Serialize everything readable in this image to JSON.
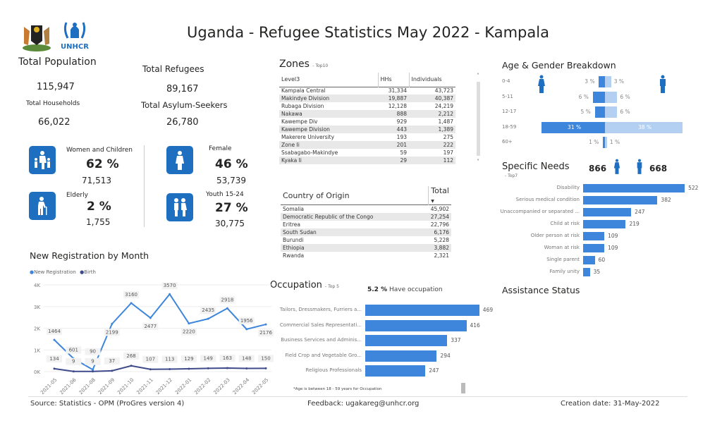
{
  "header": {
    "title": "Uganda - Refugee Statistics May 2022 - Kampala",
    "logos": [
      "Uganda coat of arms",
      "UNHCR"
    ]
  },
  "kpis": {
    "total_population_label": "Total Population",
    "total_population": "115,947",
    "total_households_label": "Total Households",
    "total_households": "66,022",
    "total_refugees_label": "Total Refugees",
    "total_refugees": "89,167",
    "total_asylum_label": "Total Asylum-Seekers",
    "total_asylum": "26,780"
  },
  "demographics": [
    {
      "label": "Women and Children",
      "pct": "62 %",
      "count": "71,513",
      "icon": "woman-children-icon"
    },
    {
      "label": "Elderly",
      "pct": "2 %",
      "count": "1,755",
      "icon": "elderly-icon"
    },
    {
      "label": "Female",
      "pct": "46 %",
      "count": "53,739",
      "icon": "female-icon"
    },
    {
      "label": "Youth 15-24",
      "pct": "27 %",
      "count": "30,775",
      "icon": "youth-icon"
    }
  ],
  "zones": {
    "title": "Zones",
    "subtitle": "- Top10",
    "columns": [
      "Level3",
      "HHs",
      "Individuals"
    ],
    "rows": [
      [
        "Kampala Central",
        "31,334",
        "43,723"
      ],
      [
        "Makindye Division",
        "19,887",
        "40,387"
      ],
      [
        "Rubaga Division",
        "12,128",
        "24,219"
      ],
      [
        "Nakawa",
        "888",
        "2,212"
      ],
      [
        "Kawempe Div",
        "929",
        "1,487"
      ],
      [
        "Kawempe Division",
        "443",
        "1,389"
      ],
      [
        "Makerere University",
        "193",
        "275"
      ],
      [
        "Zone Ii",
        "201",
        "222"
      ],
      [
        "Ssabagabo-Makindye",
        "59",
        "197"
      ],
      [
        "Kyaka Ii",
        "29",
        "112"
      ]
    ]
  },
  "country": {
    "columns": [
      "Country of Origin",
      "Total"
    ],
    "rows": [
      [
        "Somalia",
        "45,902"
      ],
      [
        "Democratic Republic of the Congo",
        "27,254"
      ],
      [
        "Eritrea",
        "22,796"
      ],
      [
        "South Sudan",
        "6,176"
      ],
      [
        "Burundi",
        "5,228"
      ],
      [
        "Ethiopia",
        "3,882"
      ],
      [
        "Rwanda",
        "2,321"
      ]
    ]
  },
  "age_gender": {
    "title": "Age & Gender Breakdown",
    "groups": [
      "0-4",
      "5-11",
      "12-17",
      "18-59",
      "60+"
    ],
    "female": [
      3,
      6,
      5,
      31,
      1
    ],
    "male": [
      3,
      6,
      6,
      38,
      1
    ],
    "female_labels": [
      "3 %",
      "6 %",
      "5 %",
      "31 %",
      "1 %"
    ],
    "male_labels": [
      "3 %",
      "6 %",
      "6 %",
      "38 %",
      "1 %"
    ],
    "colors": {
      "female": "#3e86dc",
      "male": "#b3d0f2"
    }
  },
  "specific_needs": {
    "title": "Specific Needs",
    "subtitle": "- Top7",
    "female_total": "866",
    "male_total": "668",
    "categories": [
      "Disability",
      "Serious medical condition",
      "Unaccompanied or separated ...",
      "Child at risk",
      "Older person at risk",
      "Woman at risk",
      "Single parent",
      "Family unity"
    ],
    "values": [
      522,
      382,
      247,
      219,
      109,
      109,
      60,
      35
    ]
  },
  "assistance": {
    "title": "Assistance Status"
  },
  "occupation": {
    "title": "Occupation",
    "subtitle": "- Top 5",
    "headline_pct": "5.2 %",
    "headline_text": "Have occupation",
    "categories": [
      "Tailors, Dressmakers, Furriers a...",
      "Commercial Sales Representati...",
      "Business Services and Adminis...",
      "Field Crop and Vegetable Gro...",
      "Religious Professionals"
    ],
    "values": [
      469,
      416,
      337,
      294,
      247
    ],
    "note": "*Age is between 18 - 59 years for Occupation"
  },
  "chart_data": {
    "type": "line",
    "title": "New Registration by Month",
    "x": [
      "2021-05",
      "2021-06",
      "2021-08",
      "2021-09",
      "2021-10",
      "2021-11",
      "2021-12",
      "2022-01",
      "2022-02",
      "2022-03",
      "2022-04",
      "2022-05"
    ],
    "series": [
      {
        "name": "New Registration",
        "color": "#3e86dc",
        "values": [
          1464,
          601,
          90,
          2199,
          3160,
          2477,
          3570,
          2220,
          2435,
          2918,
          1956,
          2176
        ]
      },
      {
        "name": "Birth",
        "color": "#3f4a8a",
        "values": [
          134,
          9,
          9,
          37,
          268,
          107,
          113,
          129,
          149,
          163,
          148,
          150
        ]
      }
    ],
    "yticks": [
      "0K",
      "1K",
      "2K",
      "3K",
      "4K"
    ],
    "ylim": [
      0,
      4000
    ],
    "grid": true,
    "legend": "top-left"
  },
  "footer": {
    "source": "Source: Statistics - OPM (ProGres version 4)",
    "feedback": "Feedback: ugakareg@unhcr.org",
    "created": "Creation date: 31-May-2022"
  }
}
